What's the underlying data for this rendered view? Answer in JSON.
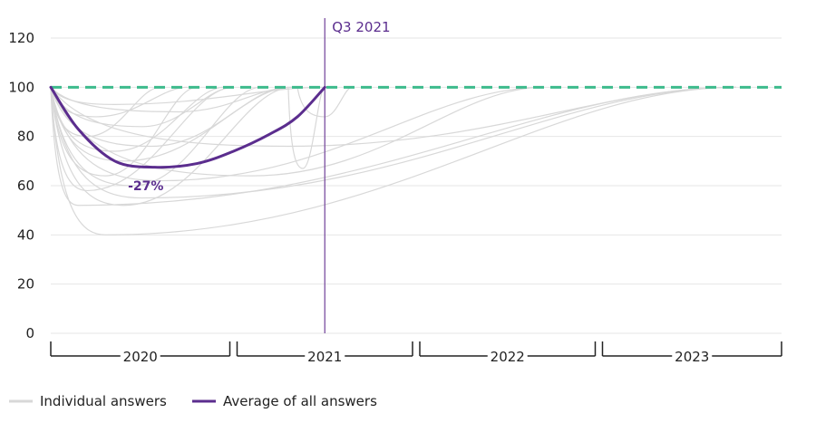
{
  "chart_data": {
    "type": "line",
    "ylim": [
      0,
      120
    ],
    "y_ticks": [
      "0",
      "20",
      "40",
      "60",
      "80",
      "100",
      "120"
    ],
    "years": [
      "2020",
      "2021",
      "2022",
      "2023"
    ],
    "reference_line": {
      "value": 100,
      "color": "#3dbb8c"
    },
    "marker": {
      "label": "Q3 2021",
      "x": 2021.5,
      "color": "#7b4fa0"
    },
    "annotation": {
      "label": "-27%"
    },
    "average": {
      "name": "Average of all answers",
      "color": "#5b2d8e",
      "points": [
        [
          2020.0,
          100
        ],
        [
          2020.15,
          83
        ],
        [
          2020.35,
          70
        ],
        [
          2020.57,
          67.5
        ],
        [
          2020.8,
          69
        ],
        [
          2021.0,
          74
        ],
        [
          2021.2,
          81
        ],
        [
          2021.35,
          88
        ],
        [
          2021.5,
          100
        ]
      ]
    },
    "individual": {
      "name": "Individual answers",
      "color": "#d8d8d8",
      "curves": [
        {
          "start": 2020.0,
          "min_x": 2020.3,
          "min_y": 40,
          "end": 2023.75
        },
        {
          "start": 2020.0,
          "min_x": 2020.15,
          "min_y": 52,
          "end": 2023.75
        },
        {
          "start": 2020.0,
          "min_x": 2020.4,
          "min_y": 52,
          "end": 2021.32
        },
        {
          "start": 2020.0,
          "min_x": 2020.5,
          "min_y": 55,
          "end": 2023.75
        },
        {
          "start": 2020.0,
          "min_x": 2020.2,
          "min_y": 58,
          "end": 2021.0
        },
        {
          "start": 2020.0,
          "min_x": 2020.45,
          "min_y": 60,
          "end": 2021.15
        },
        {
          "start": 2020.0,
          "min_x": 2020.6,
          "min_y": 62,
          "end": 2022.7
        },
        {
          "start": 2020.0,
          "min_x": 2020.3,
          "min_y": 64,
          "end": 2020.8
        },
        {
          "start": 2020.0,
          "min_x": 2021.1,
          "min_y": 64,
          "end": 2022.7
        },
        {
          "start": 2020.0,
          "min_x": 2020.4,
          "min_y": 70,
          "end": 2021.32
        },
        {
          "start": 2020.0,
          "min_x": 2020.35,
          "min_y": 74,
          "end": 2020.95
        },
        {
          "start": 2020.0,
          "min_x": 2020.55,
          "min_y": 76,
          "end": 2021.3
        },
        {
          "start": 2020.0,
          "min_x": 2021.3,
          "min_y": 76,
          "end": 2023.75
        },
        {
          "start": 2020.0,
          "min_x": 2020.2,
          "min_y": 80,
          "end": 2020.6
        },
        {
          "start": 2020.0,
          "min_x": 2020.5,
          "min_y": 84,
          "end": 2021.0
        },
        {
          "start": 2020.0,
          "min_x": 2020.25,
          "min_y": 88,
          "end": 2020.75
        },
        {
          "start": 2020.0,
          "min_x": 2020.7,
          "min_y": 90,
          "end": 2021.32
        },
        {
          "start": 2020.0,
          "min_x": 2020.35,
          "min_y": 93,
          "end": 2021.5
        },
        {
          "start": 2021.3,
          "min_x": 2021.38,
          "min_y": 67,
          "end": 2021.5
        },
        {
          "start": 2021.35,
          "min_x": 2021.5,
          "min_y": 88,
          "end": 2021.65
        }
      ]
    },
    "legend": [
      {
        "label": "Individual answers",
        "color": "#d8d8d8"
      },
      {
        "label": "Average of all answers",
        "color": "#5b2d8e"
      }
    ]
  }
}
